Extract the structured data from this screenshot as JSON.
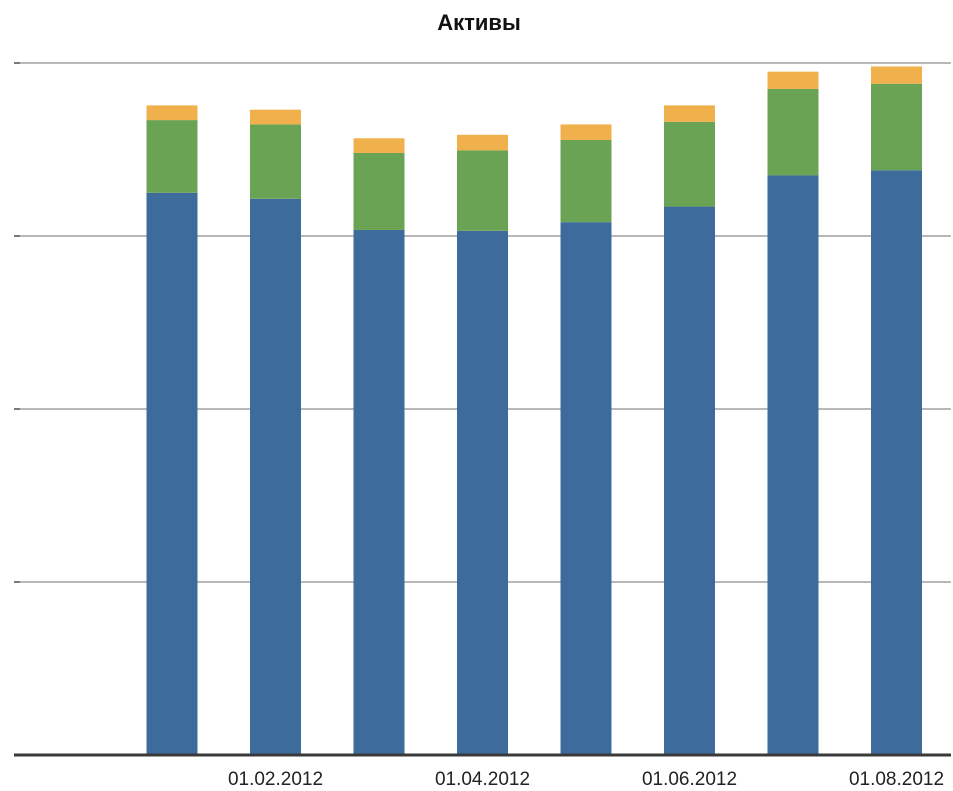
{
  "chart_data": {
    "type": "bar",
    "stacked": true,
    "title": "Активы",
    "xlabel": "",
    "ylabel": "",
    "categories": [
      "",
      "01.02.2012",
      "",
      "01.04.2012",
      "",
      "01.06.2012",
      "",
      "01.08.2012"
    ],
    "series": [
      {
        "color": "#3c6b9c",
        "values": [
          650,
          643,
          607,
          606,
          616,
          634,
          670,
          676
        ]
      },
      {
        "color": "#6ba354",
        "values": [
          84,
          86,
          89,
          93,
          95,
          98,
          100,
          100
        ]
      },
      {
        "color": "#f0b04c",
        "values": [
          17,
          17,
          17,
          18,
          18,
          19,
          20,
          20
        ]
      }
    ],
    "ylim": [
      0,
      800
    ],
    "y_ticks": [
      0,
      200,
      400,
      600,
      800
    ],
    "y_tick_labels_shown": false,
    "grid": true,
    "legend": "none"
  }
}
